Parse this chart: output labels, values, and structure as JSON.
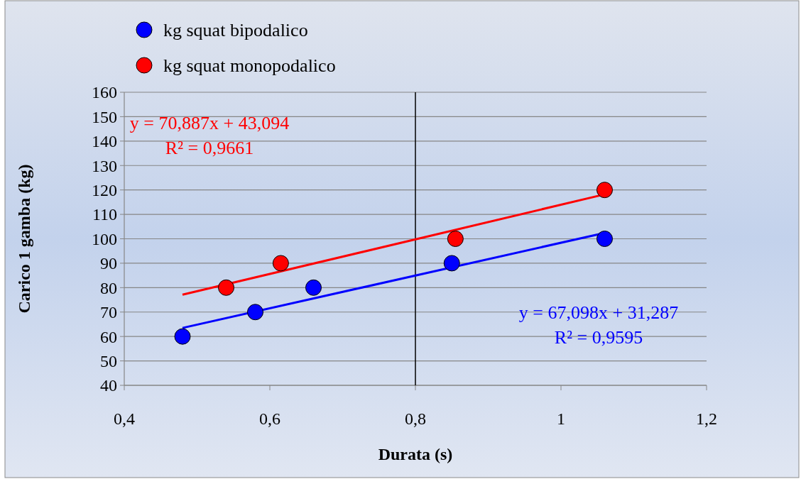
{
  "chart_data": {
    "type": "scatter",
    "xlabel": "Durata (s)",
    "ylabel": "Carico 1 gamba (kg)",
    "xlim": [
      0.4,
      1.2
    ],
    "xticks": [
      {
        "value": 0.4,
        "label": "0,4"
      },
      {
        "value": 0.6,
        "label": "0,6"
      },
      {
        "value": 0.8,
        "label": "0,8"
      },
      {
        "value": 1,
        "label": "1"
      },
      {
        "value": 1.2,
        "label": "1,2"
      }
    ],
    "ylim": [
      40,
      160
    ],
    "yticks": [
      40,
      50,
      60,
      70,
      80,
      90,
      100,
      110,
      120,
      130,
      140,
      150,
      160
    ],
    "grid": "y",
    "legend": "top left",
    "marker": "circle",
    "series": [
      {
        "name": "kg squat bipodalico",
        "color": "#0000ff",
        "x": [
          0.48,
          0.58,
          0.66,
          0.85,
          1.06
        ],
        "values": [
          60,
          70,
          80,
          90,
          100
        ]
      },
      {
        "name": "kg squat monopodalico",
        "color": "#ff0000",
        "x": [
          0.54,
          0.615,
          0.855,
          1.06
        ],
        "values": [
          80,
          90,
          100,
          120
        ]
      },
      {
        "type": "line",
        "marker": "none",
        "color": "#ff0000",
        "x": [
          0.48,
          1.06
        ],
        "values": [
          77.1,
          118.2
        ]
      },
      {
        "type": "line",
        "marker": "none",
        "color": "#0000ff",
        "x": [
          0.48,
          1.06
        ],
        "values": [
          63.5,
          102.4
        ]
      }
    ],
    "ref_lines": [
      {
        "axis": "x",
        "value": 0.8,
        "color": "#000000"
      }
    ],
    "annotations": [
      "y = 70,887x + 43,094",
      "R² = 0,9661",
      "y = 67,098x + 31,287",
      "R² = 0,9595"
    ]
  }
}
